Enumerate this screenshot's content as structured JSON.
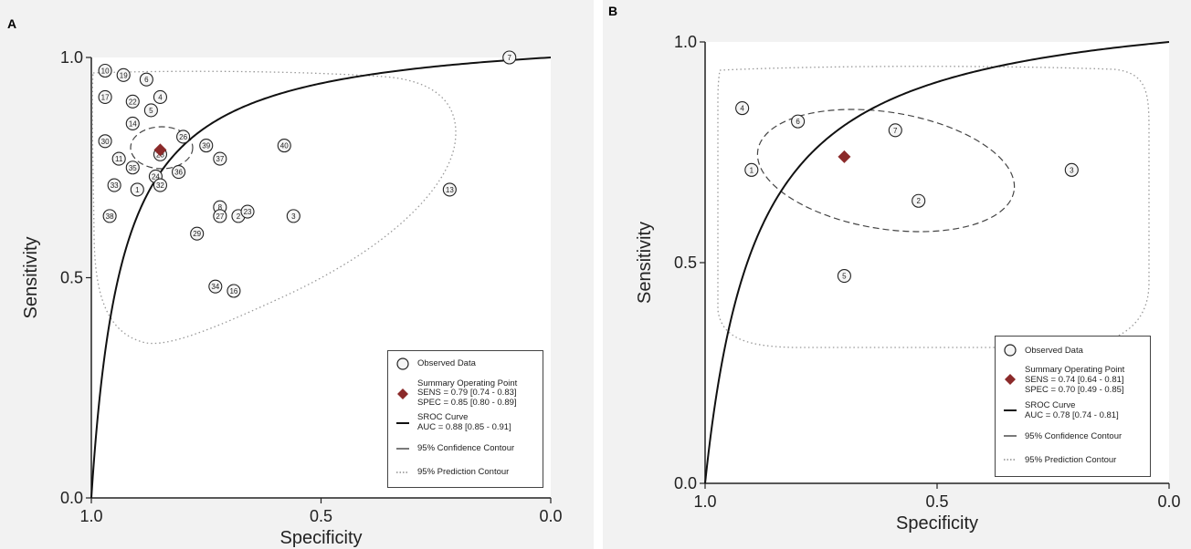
{
  "chart_data": [
    {
      "panel": "A",
      "type": "scatter",
      "xlabel": "Specificity",
      "ylabel": "Sensitivity",
      "xlim": [
        1.0,
        0.0
      ],
      "ylim": [
        0.0,
        1.0
      ],
      "x_ticks": [
        "1.0",
        "0.5",
        "0.0"
      ],
      "y_ticks": [
        "0.0",
        "0.5",
        "1.0"
      ],
      "grid": false,
      "legend_position": "bottom-right",
      "observed": [
        {
          "label": "7",
          "spec": 0.09,
          "sens": 1.0
        },
        {
          "label": "10",
          "spec": 0.97,
          "sens": 0.97
        },
        {
          "label": "19",
          "spec": 0.93,
          "sens": 0.96
        },
        {
          "label": "6",
          "spec": 0.88,
          "sens": 0.95
        },
        {
          "label": "17",
          "spec": 0.97,
          "sens": 0.91
        },
        {
          "label": "22",
          "spec": 0.91,
          "sens": 0.9
        },
        {
          "label": "4",
          "spec": 0.85,
          "sens": 0.91
        },
        {
          "label": "5",
          "spec": 0.87,
          "sens": 0.88
        },
        {
          "label": "14",
          "spec": 0.91,
          "sens": 0.85
        },
        {
          "label": "26",
          "spec": 0.8,
          "sens": 0.82
        },
        {
          "label": "30",
          "spec": 0.97,
          "sens": 0.81
        },
        {
          "label": "39",
          "spec": 0.75,
          "sens": 0.8
        },
        {
          "label": "40",
          "spec": 0.58,
          "sens": 0.8
        },
        {
          "label": "28",
          "spec": 0.85,
          "sens": 0.78
        },
        {
          "label": "11",
          "spec": 0.94,
          "sens": 0.77
        },
        {
          "label": "37",
          "spec": 0.72,
          "sens": 0.77
        },
        {
          "label": "35",
          "spec": 0.91,
          "sens": 0.75
        },
        {
          "label": "36",
          "spec": 0.81,
          "sens": 0.74
        },
        {
          "label": "24",
          "spec": 0.86,
          "sens": 0.73
        },
        {
          "label": "33",
          "spec": 0.95,
          "sens": 0.71
        },
        {
          "label": "32",
          "spec": 0.85,
          "sens": 0.71
        },
        {
          "label": "1",
          "spec": 0.9,
          "sens": 0.7
        },
        {
          "label": "13",
          "spec": 0.22,
          "sens": 0.7
        },
        {
          "label": "8",
          "spec": 0.72,
          "sens": 0.66
        },
        {
          "label": "38",
          "spec": 0.96,
          "sens": 0.64
        },
        {
          "label": "27",
          "spec": 0.72,
          "sens": 0.64
        },
        {
          "label": "2",
          "spec": 0.68,
          "sens": 0.64
        },
        {
          "label": "23",
          "spec": 0.66,
          "sens": 0.65
        },
        {
          "label": "3",
          "spec": 0.56,
          "sens": 0.64
        },
        {
          "label": "29",
          "spec": 0.77,
          "sens": 0.6
        },
        {
          "label": "34",
          "spec": 0.73,
          "sens": 0.48
        },
        {
          "label": "16",
          "spec": 0.69,
          "sens": 0.47
        }
      ],
      "summary_point": {
        "spec": 0.85,
        "sens": 0.79
      },
      "legend": {
        "observed": "Observed Data",
        "summary_title": "Summary Operating Point",
        "sens": "SENS = 0.79 [0.74 - 0.83]",
        "spec": "SPEC = 0.85 [0.80 - 0.89]",
        "sroc_title": "SROC Curve",
        "auc": "AUC = 0.88 [0.85 - 0.91]",
        "confidence": "95% Confidence Contour",
        "prediction": "95% Prediction Contour"
      }
    },
    {
      "panel": "B",
      "type": "scatter",
      "xlabel": "Specificity",
      "ylabel": "Sensitivity",
      "xlim": [
        1.0,
        0.0
      ],
      "ylim": [
        0.0,
        1.0
      ],
      "x_ticks": [
        "1.0",
        "0.5",
        "0.0"
      ],
      "y_ticks": [
        "0.0",
        "0.5",
        "1.0"
      ],
      "grid": false,
      "legend_position": "bottom-right",
      "observed": [
        {
          "label": "4",
          "spec": 0.92,
          "sens": 0.85
        },
        {
          "label": "6",
          "spec": 0.8,
          "sens": 0.82
        },
        {
          "label": "7",
          "spec": 0.59,
          "sens": 0.8
        },
        {
          "label": "1",
          "spec": 0.9,
          "sens": 0.71
        },
        {
          "label": "2",
          "spec": 0.54,
          "sens": 0.64
        },
        {
          "label": "3",
          "spec": 0.21,
          "sens": 0.71
        },
        {
          "label": "5",
          "spec": 0.7,
          "sens": 0.47
        }
      ],
      "summary_point": {
        "spec": 0.7,
        "sens": 0.74
      },
      "legend": {
        "observed": "Observed Data",
        "summary_title": "Summary Operating Point",
        "sens": "SENS = 0.74 [0.64 - 0.81]",
        "spec": "SPEC = 0.70 [0.49 - 0.85]",
        "sroc_title": "SROC Curve",
        "auc": "AUC = 0.78 [0.74 - 0.81]",
        "confidence": "95% Confidence Contour",
        "prediction": "95% Prediction Contour"
      }
    }
  ],
  "panels": {
    "a_label": "A",
    "b_label": "B"
  },
  "colors": {
    "summary_point": "#8b2a2a",
    "plot_bg": "#ffffff",
    "outer_bg": "#f2f2f2"
  }
}
